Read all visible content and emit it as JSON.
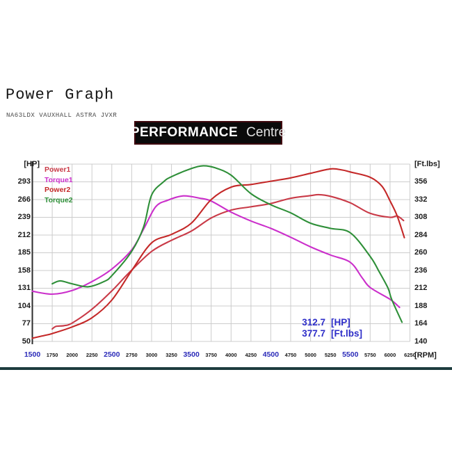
{
  "page": {
    "title": "Power Graph",
    "subtitle": "NA63LDX VAUXHALL ASTRA JVXR"
  },
  "logo": {
    "primary": "PERFORMANCE",
    "secondary": "Centre"
  },
  "annotation": {
    "power_value": "312.7",
    "power_unit": "[HP]",
    "torque_value": "377.7",
    "torque_unit": "[Ft.lbs]"
  },
  "colors": {
    "grid": "#cccccc",
    "axis": "#2b2b2b",
    "major_rpm_label": "#2a2ab8",
    "annotation_blue": "#2d2dc8",
    "power1": "#c93a47",
    "torque1": "#cb2fcb",
    "power2": "#c42828",
    "torque2": "#2e8f38"
  },
  "chart_data": {
    "type": "line",
    "title": "Power Graph",
    "grid": true,
    "legend_position": "top-left",
    "x_axis": {
      "label": "[RPM]",
      "min": 1500,
      "max": 6250,
      "tick_step": 250,
      "ticks": [
        1500,
        1750,
        2000,
        2250,
        2500,
        2750,
        3000,
        3250,
        3500,
        3750,
        4000,
        4250,
        4500,
        4750,
        5000,
        5250,
        5500,
        5750,
        6000,
        6250
      ],
      "major_ticks": [
        1500,
        2500,
        3500,
        4500,
        5500
      ]
    },
    "y_left": {
      "label": "[HP]",
      "min": 50,
      "max": 320,
      "tick_step": 27,
      "ticks": [
        293,
        266,
        239,
        212,
        185,
        158,
        131,
        104,
        77,
        50
      ]
    },
    "y_right": {
      "label": "[Ft.lbs]",
      "min": 140,
      "max": 380,
      "tick_step": 24,
      "ticks": [
        356,
        332,
        308,
        284,
        260,
        236,
        212,
        188,
        164,
        140
      ]
    },
    "peaks": {
      "power_hp": 312.7,
      "torque_ftlbs": 377.7
    },
    "series": [
      {
        "name": "Power1",
        "color": "#c93a47",
        "axis": "hp",
        "points": [
          [
            1750,
            69
          ],
          [
            1800,
            73
          ],
          [
            1900,
            74
          ],
          [
            2000,
            78
          ],
          [
            2250,
            99
          ],
          [
            2500,
            127
          ],
          [
            2720,
            155
          ],
          [
            3000,
            187
          ],
          [
            3250,
            204
          ],
          [
            3500,
            218
          ],
          [
            3750,
            238
          ],
          [
            4000,
            250
          ],
          [
            4250,
            255
          ],
          [
            4500,
            260
          ],
          [
            4750,
            268
          ],
          [
            5000,
            272
          ],
          [
            5100,
            273.5
          ],
          [
            5250,
            271
          ],
          [
            5500,
            261
          ],
          [
            5750,
            245
          ],
          [
            6000,
            239
          ],
          [
            6090,
            241
          ],
          [
            6170,
            234
          ]
        ]
      },
      {
        "name": "Torque1",
        "color": "#cb2fcb",
        "axis": "lbs",
        "points": [
          [
            1500,
            208
          ],
          [
            1750,
            204
          ],
          [
            2000,
            209
          ],
          [
            2250,
            221
          ],
          [
            2500,
            238
          ],
          [
            2750,
            264
          ],
          [
            2900,
            292
          ],
          [
            3050,
            322
          ],
          [
            3200,
            331
          ],
          [
            3400,
            337
          ],
          [
            3600,
            334
          ],
          [
            3750,
            330
          ],
          [
            4000,
            315
          ],
          [
            4250,
            303
          ],
          [
            4500,
            293
          ],
          [
            4750,
            281
          ],
          [
            5000,
            268
          ],
          [
            5250,
            257
          ],
          [
            5500,
            247
          ],
          [
            5650,
            226
          ],
          [
            5750,
            213
          ],
          [
            6000,
            197
          ],
          [
            6120,
            186
          ]
        ]
      },
      {
        "name": "Power2",
        "color": "#c42828",
        "axis": "hp",
        "points": [
          [
            1500,
            55
          ],
          [
            1650,
            59
          ],
          [
            1750,
            62
          ],
          [
            2000,
            72
          ],
          [
            2250,
            86
          ],
          [
            2500,
            113
          ],
          [
            2750,
            158
          ],
          [
            3000,
            200
          ],
          [
            3250,
            213
          ],
          [
            3500,
            230
          ],
          [
            3750,
            266
          ],
          [
            4000,
            285
          ],
          [
            4250,
            289
          ],
          [
            4500,
            294
          ],
          [
            4750,
            299
          ],
          [
            5000,
            306
          ],
          [
            5250,
            312.7
          ],
          [
            5400,
            311
          ],
          [
            5500,
            308
          ],
          [
            5750,
            300
          ],
          [
            5900,
            286
          ],
          [
            6000,
            264
          ],
          [
            6090,
            241
          ],
          [
            6180,
            208
          ]
        ]
      },
      {
        "name": "Torque2",
        "color": "#2e8f38",
        "axis": "lbs",
        "points": [
          [
            1750,
            218
          ],
          [
            1850,
            222
          ],
          [
            2000,
            218
          ],
          [
            2200,
            214
          ],
          [
            2400,
            221
          ],
          [
            2500,
            229
          ],
          [
            2750,
            262
          ],
          [
            2900,
            295
          ],
          [
            3000,
            338
          ],
          [
            3150,
            356
          ],
          [
            3250,
            363
          ],
          [
            3500,
            374
          ],
          [
            3650,
            377.7
          ],
          [
            3800,
            375
          ],
          [
            4000,
            365
          ],
          [
            4250,
            340
          ],
          [
            4500,
            325
          ],
          [
            4750,
            314
          ],
          [
            5000,
            300
          ],
          [
            5250,
            293
          ],
          [
            5500,
            287
          ],
          [
            5750,
            255
          ],
          [
            5860,
            235
          ],
          [
            5975,
            212
          ],
          [
            6020,
            197
          ],
          [
            6150,
            166
          ]
        ]
      }
    ]
  }
}
